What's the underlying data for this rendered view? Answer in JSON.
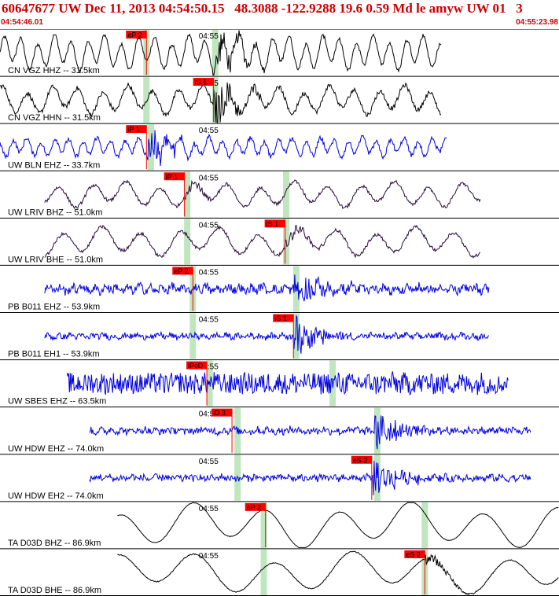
{
  "header": {
    "title": "60647677 UW Dec 11, 2013 04:54:50.15   48.3088 -122.9288 19.6 0.59 Md le amyw UW 01   3",
    "start_time": "04:54:46.01",
    "end_time": "04:55:23.98"
  },
  "colors": {
    "title": "#cc0000",
    "pick": "#ff0000",
    "window": "#bfe6bf",
    "blue": "#0000e0",
    "black": "#000000",
    "purple": "#2a0a3a"
  },
  "minute_label": "04:55",
  "traces": [
    {
      "label": "CN VGZ HHZ -- 31.5km",
      "color": "#000000",
      "start": 0.0,
      "end": 0.79,
      "amp": 0.55,
      "noise": 0.08,
      "period": 0.03,
      "pick": "eP 2",
      "pick_at": 0.262,
      "onset": 0.38,
      "burst": 0.9,
      "green": [
        0.262,
        0.385
      ],
      "minute": 0.385
    },
    {
      "label": "CN VGZ HHN -- 31.5km",
      "color": "#000000",
      "start": 0.0,
      "end": 0.79,
      "amp": 0.45,
      "noise": 0.1,
      "period": 0.045,
      "pick": "iS 1",
      "pick_at": 0.382,
      "onset": 0.382,
      "burst": 1.0,
      "green": [
        0.262,
        0.385
      ],
      "minute": 0.385
    },
    {
      "label": "UW BLN EHZ -- 33.7km",
      "color": "#0000e0",
      "start": 0.0,
      "end": 0.8,
      "amp": 0.3,
      "noise": 0.1,
      "period": 0.025,
      "pick": "iP 1",
      "pick_at": 0.262,
      "onset": 0.262,
      "burst": 1.0,
      "green": [
        0.27
      ],
      "minute": 0.385
    },
    {
      "label": "UW LRIV BHZ -- 51.0km",
      "color": "#2a0a3a",
      "start": 0.08,
      "end": 0.86,
      "amp": 0.4,
      "noise": 0.07,
      "period": 0.06,
      "pick": "iP 1",
      "pick_at": 0.33,
      "onset": 0.33,
      "burst": 0.3,
      "green": [
        0.335,
        0.512
      ],
      "minute": 0.385
    },
    {
      "label": "UW LRIV BHE -- 51.0km",
      "color": "#2a0a3a",
      "start": 0.08,
      "end": 0.86,
      "amp": 0.45,
      "noise": 0.07,
      "period": 0.07,
      "pick": "iS 1",
      "pick_at": 0.51,
      "onset": 0.51,
      "burst": 0.3,
      "green": [
        0.335,
        0.512
      ],
      "minute": 0.385
    },
    {
      "label": "PB B011 EHZ -- 53.9km",
      "color": "#0000e0",
      "start": 0.08,
      "end": 0.875,
      "amp": 0.1,
      "noise": 0.18,
      "period": 0.02,
      "pick": "eP 2",
      "pick_at": 0.345,
      "onset": 0.525,
      "burst": 0.9,
      "green": [
        0.345,
        0.53
      ],
      "minute": 0.385
    },
    {
      "label": "PB B011 EH1 -- 53.9km",
      "color": "#0000e0",
      "start": 0.08,
      "end": 0.875,
      "amp": 0.05,
      "noise": 0.12,
      "period": 0.02,
      "pick": "iS 1",
      "pick_at": 0.525,
      "onset": 0.525,
      "burst": 1.0,
      "green": [
        0.345,
        0.53
      ],
      "minute": 0.385
    },
    {
      "label": "UW SBES EHZ -- 63.5km",
      "color": "#0000e0",
      "start": 0.12,
      "end": 0.91,
      "amp": 0.05,
      "noise": 0.45,
      "period": 0.02,
      "pick": "iPcD",
      "pick_at": 0.37,
      "onset": 0.9,
      "burst": 0.2,
      "green": [
        0.375,
        0.595
      ],
      "minute": 0.385
    },
    {
      "label": "UW HDW EHZ -- 74.0km",
      "color": "#0000e0",
      "start": 0.16,
      "end": 0.95,
      "amp": 0.05,
      "noise": 0.15,
      "period": 0.02,
      "pick": "iD 3",
      "pick_at": 0.415,
      "onset": 0.67,
      "burst": 1.0,
      "green": [
        0.425,
        0.675
      ],
      "minute": 0.385
    },
    {
      "label": "UW HDW EH2 -- 74.0km",
      "color": "#0000e0",
      "start": 0.16,
      "end": 0.95,
      "amp": 0.05,
      "noise": 0.14,
      "period": 0.02,
      "pick": "eS 2",
      "pick_at": 0.665,
      "onset": 0.665,
      "burst": 1.0,
      "green": [
        0.425,
        0.675
      ],
      "minute": 0.385
    },
    {
      "label": "TA D03D BHZ -- 86.9km",
      "color": "#000000",
      "start": 0.21,
      "end": 1.0,
      "amp": 0.7,
      "noise": 0.01,
      "period": 0.13,
      "pick": "eP 2",
      "pick_at": 0.475,
      "onset": 0.9,
      "burst": 0.0,
      "green": [
        0.472,
        0.76
      ],
      "minute": 0.385
    },
    {
      "label": "TA D03D BHE -- 86.9km",
      "color": "#000000",
      "start": 0.21,
      "end": 1.0,
      "amp": 0.65,
      "noise": 0.02,
      "period": 0.14,
      "pick": "eS 2",
      "pick_at": 0.76,
      "onset": 0.76,
      "burst": 0.3,
      "green": [
        0.472,
        0.76
      ],
      "minute": 0.385
    }
  ]
}
